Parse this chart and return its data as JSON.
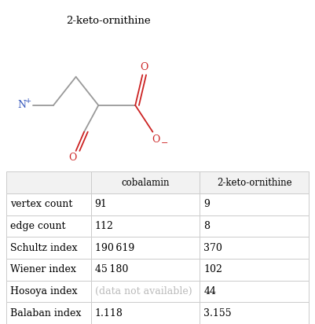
{
  "molecule_title": "2-keto-ornithine",
  "table_header": [
    "",
    "cobalamin",
    "2-keto-ornithine"
  ],
  "rows": [
    [
      "vertex count",
      "91",
      "9"
    ],
    [
      "edge count",
      "112",
      "8"
    ],
    [
      "Schultz index",
      "190 619",
      "370"
    ],
    [
      "Wiener index",
      "45 180",
      "102"
    ],
    [
      "Hosoya index",
      "(data not available)",
      "44"
    ],
    [
      "Balaban index",
      "1.118",
      "3.155"
    ]
  ],
  "bond_color": "#999999",
  "red_color": "#cc2222",
  "blue_color": "#3355bb",
  "grid_color": "#cccccc",
  "text_color_normal": "#000000",
  "text_color_gray": "#bbbbbb",
  "title_fontsize": 9.5,
  "cell_fontsize": 9,
  "header_fontsize": 8.5,
  "fig_bg": "#ffffff"
}
